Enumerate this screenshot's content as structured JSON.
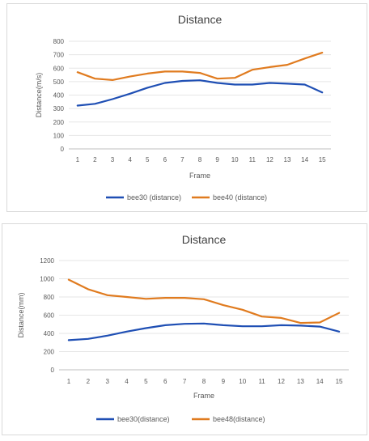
{
  "chart_data": [
    {
      "type": "line",
      "title": "Distance",
      "xlabel": "Frame",
      "ylabel": "Distance(m/s)",
      "x": [
        1,
        2,
        3,
        4,
        5,
        6,
        7,
        8,
        9,
        10,
        11,
        12,
        13,
        14,
        15
      ],
      "ylim": [
        0,
        800
      ],
      "yticks": [
        0,
        100,
        200,
        300,
        400,
        500,
        600,
        700,
        800
      ],
      "grid": true,
      "legend_position": "bottom",
      "series": [
        {
          "name": "bee30 (distance)",
          "color": "#1f4fb4",
          "values": [
            322,
            335,
            370,
            410,
            455,
            490,
            505,
            510,
            490,
            478,
            478,
            490,
            485,
            478,
            420
          ]
        },
        {
          "name": "bee40 (distance)",
          "color": "#e07b1f",
          "values": [
            570,
            522,
            512,
            538,
            560,
            575,
            575,
            565,
            522,
            528,
            588,
            608,
            625,
            672,
            715
          ]
        }
      ]
    },
    {
      "type": "line",
      "title": "Distance",
      "xlabel": "Frame",
      "ylabel": "Distance(mm)",
      "x": [
        1,
        2,
        3,
        4,
        5,
        6,
        7,
        8,
        9,
        10,
        11,
        12,
        13,
        14,
        15
      ],
      "ylim": [
        0,
        1200
      ],
      "yticks": [
        0,
        200,
        400,
        600,
        800,
        1000,
        1200
      ],
      "grid": true,
      "legend_position": "bottom",
      "series": [
        {
          "name": "bee30(distance)",
          "color": "#1f4fb4",
          "values": [
            325,
            340,
            375,
            420,
            458,
            490,
            505,
            508,
            490,
            478,
            478,
            490,
            485,
            475,
            420
          ]
        },
        {
          "name": "bee48(distance)",
          "color": "#e07b1f",
          "values": [
            990,
            885,
            820,
            800,
            780,
            790,
            790,
            775,
            710,
            660,
            585,
            570,
            515,
            520,
            625
          ]
        }
      ]
    }
  ]
}
